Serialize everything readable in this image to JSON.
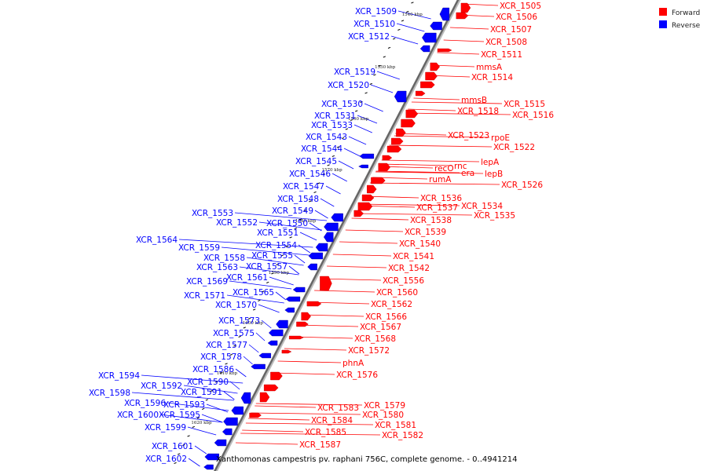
{
  "legend": {
    "forward_label": "Forward",
    "reverse_label": "Reverse",
    "forward_color": "#ff0000",
    "reverse_color": "#0000ff"
  },
  "caption": "Xanthomonas campestris pv. raphani 756C, complete genome. - 0..4941214",
  "axis_ticks": [
    "1540 kbp",
    "1550 kbp",
    "1560 kbp",
    "1570 kbp",
    "1580 kbp",
    "1590 kbp",
    "1600 kbp",
    "1610 kbp",
    "1620 kbp"
  ],
  "forward_genes": [
    "XCR_1505",
    "XCR_1506",
    "XCR_1507",
    "XCR_1508",
    "XCR_1511",
    "mmsA",
    "XCR_1514",
    "mmsB",
    "XCR_1515",
    "XCR_1518",
    "XCR_1516",
    "rpoE",
    "XCR_1523",
    "XCR_1522",
    "lepA",
    "recO",
    "rnc",
    "era",
    "lepB",
    "rumA",
    "XCR_1526",
    "XCR_1536",
    "XCR_1534",
    "XCR_1537",
    "XCR_1535",
    "XCR_1538",
    "XCR_1539",
    "XCR_1540",
    "XCR_1541",
    "XCR_1542",
    "XCR_1556",
    "XCR_1560",
    "XCR_1562",
    "XCR_1566",
    "XCR_1567",
    "XCR_1568",
    "XCR_1572",
    "phnA",
    "XCR_1576",
    "XCR_1579",
    "XCR_1583",
    "XCR_1580",
    "XCR_1584",
    "XCR_1581",
    "XCR_1582",
    "XCR_1585",
    "XCR_1587"
  ],
  "reverse_genes": [
    "XCR_1509",
    "XCR_1510",
    "XCR_1512",
    "XCR_1519",
    "XCR_1520",
    "XCR_1530",
    "XCR_1531",
    "XCR_1533",
    "XCR_1543",
    "XCR_1544",
    "XCR_1545",
    "XCR_1546",
    "XCR_1547",
    "XCR_1548",
    "XCR_1549",
    "XCR_1553",
    "XCR_1552",
    "XCR_1550",
    "XCR_1551",
    "XCR_1564",
    "XCR_1554",
    "XCR_1559",
    "XCR_1555",
    "XCR_1558",
    "XCR_1563",
    "XCR_1557",
    "XCR_1561",
    "XCR_1569",
    "XCR_1565",
    "XCR_1571",
    "XCR_1570",
    "XCR_1573",
    "XCR_1575",
    "XCR_1577",
    "XCR_1578",
    "XCR_1586",
    "XCR_1594",
    "XCR_1590",
    "XCR_1592",
    "XCR_1591",
    "XCR_1598",
    "XCR_1596",
    "XCR_1593",
    "XCR_1600",
    "XCR_1595",
    "XCR_1599",
    "XCR_1601",
    "XCR_1602"
  ]
}
